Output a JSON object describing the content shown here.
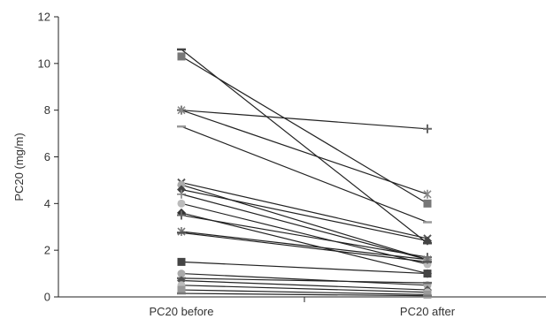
{
  "chart_data": {
    "type": "line",
    "title": "",
    "xlabel": "",
    "ylabel": "PC20 (mg/m)",
    "categories": [
      "PC20 before",
      "PC20 after"
    ],
    "ylim": [
      0,
      12
    ],
    "yticks": [
      0,
      2,
      4,
      6,
      8,
      10,
      12
    ],
    "grid": false,
    "legend": "none",
    "line_color": "#222222",
    "series": [
      {
        "values": [
          10.6,
          2.3
        ]
      },
      {
        "values": [
          10.3,
          4.0
        ]
      },
      {
        "values": [
          8.0,
          7.2
        ]
      },
      {
        "values": [
          8.0,
          4.4
        ]
      },
      {
        "values": [
          7.3,
          3.2
        ]
      },
      {
        "values": [
          4.9,
          2.5
        ]
      },
      {
        "values": [
          4.8,
          1.6
        ]
      },
      {
        "values": [
          4.6,
          2.4
        ]
      },
      {
        "values": [
          4.4,
          1.6
        ]
      },
      {
        "values": [
          4.0,
          1.4
        ]
      },
      {
        "values": [
          3.6,
          1.0
        ]
      },
      {
        "values": [
          3.5,
          1.7
        ]
      },
      {
        "values": [
          2.8,
          1.6
        ]
      },
      {
        "values": [
          2.75,
          1.5
        ]
      },
      {
        "values": [
          1.5,
          1.0
        ]
      },
      {
        "values": [
          1.0,
          0.5
        ]
      },
      {
        "values": [
          0.8,
          0.6
        ]
      },
      {
        "values": [
          0.7,
          0.3
        ]
      },
      {
        "values": [
          0.5,
          0.2
        ]
      },
      {
        "values": [
          0.3,
          0.1
        ]
      },
      {
        "values": [
          0.15,
          0.05
        ]
      }
    ]
  }
}
